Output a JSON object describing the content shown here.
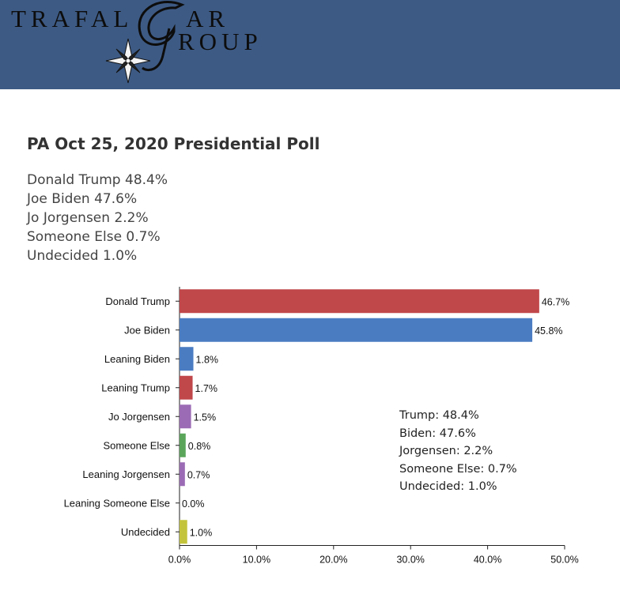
{
  "header": {
    "brand_line1": "TRAFAL",
    "brand_ar": "AR",
    "brand_line2": "ROUP",
    "logo_icon": "compass-star-icon",
    "background_color": "#3d5a84"
  },
  "poll": {
    "title": "PA Oct 25, 2020 Presidential Poll",
    "results": [
      "Donald Trump 48.4%",
      "Joe Biden 47.6%",
      "Jo Jorgensen 2.2%",
      "Someone Else 0.7%",
      "Undecided 1.0%"
    ]
  },
  "chart_data": {
    "type": "bar",
    "orientation": "horizontal",
    "title": "",
    "xlabel": "",
    "ylabel": "",
    "xlim": [
      0,
      50
    ],
    "grid": false,
    "categories": [
      "Donald Trump",
      "Joe Biden",
      "Leaning Biden",
      "Leaning Trump",
      "Jo Jorgensen",
      "Someone Else",
      "Leaning Jorgensen",
      "Leaning Someone Else",
      "Undecided"
    ],
    "values": [
      46.7,
      45.8,
      1.8,
      1.7,
      1.5,
      0.8,
      0.7,
      0.0,
      1.0
    ],
    "value_labels": [
      "46.7%",
      "45.8%",
      "1.8%",
      "1.7%",
      "1.5%",
      "0.8%",
      "0.7%",
      "0.0%",
      "1.0%"
    ],
    "colors": [
      "#c0474a",
      "#4a7cc2",
      "#4a7cc2",
      "#c0474a",
      "#9b6bb5",
      "#5aa55a",
      "#9b6bb5",
      "#9b6bb5",
      "#c4c43c"
    ],
    "x_ticks": [
      0,
      10,
      20,
      30,
      40,
      50
    ],
    "x_tick_labels": [
      "0.0%",
      "10.0%",
      "20.0%",
      "30.0%",
      "40.0%",
      "50.0%"
    ],
    "annotation": [
      "Trump: 48.4%",
      "Biden: 47.6%",
      "Jorgensen: 2.2%",
      "Someone Else: 0.7%",
      "Undecided: 1.0%"
    ]
  }
}
